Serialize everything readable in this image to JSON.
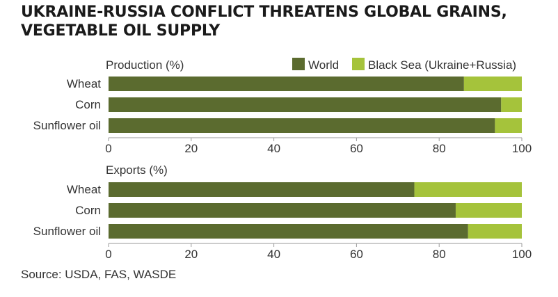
{
  "title_lines": [
    "UKRAINE-RUSSIA CONFLICT THREATENS GLOBAL GRAINS,",
    "VEGETABLE OIL SUPPLY"
  ],
  "source": "Source: USDA, FAS, WASDE",
  "colors": {
    "world": "#5b6b2f",
    "black_sea": "#a5c33b",
    "axis": "#9a9a9a",
    "text": "#333333"
  },
  "chart_data": [
    {
      "type": "bar",
      "stacked": true,
      "orientation": "horizontal",
      "title": "Production (%)",
      "categories": [
        "Wheat",
        "Corn",
        "Sunflower oil"
      ],
      "series": [
        {
          "name": "World",
          "values": [
            86,
            95,
            93.5
          ]
        },
        {
          "name": "Black Sea (Ukraine+Russia)",
          "values": [
            14,
            5,
            6.5
          ]
        }
      ],
      "xlim": [
        0,
        100
      ],
      "xticks": [
        "0",
        "20",
        "40",
        "60",
        "80",
        "100"
      ],
      "legend": "top-right"
    },
    {
      "type": "bar",
      "stacked": true,
      "orientation": "horizontal",
      "title": "Exports (%)",
      "categories": [
        "Wheat",
        "Corn",
        "Sunflower oil"
      ],
      "series": [
        {
          "name": "World",
          "values": [
            74,
            84,
            87
          ]
        },
        {
          "name": "Black Sea (Ukraine+Russia)",
          "values": [
            26,
            16,
            13
          ]
        }
      ],
      "xlim": [
        0,
        100
      ],
      "xticks": [
        "0",
        "20",
        "40",
        "60",
        "80",
        "100"
      ],
      "legend": "none"
    }
  ]
}
